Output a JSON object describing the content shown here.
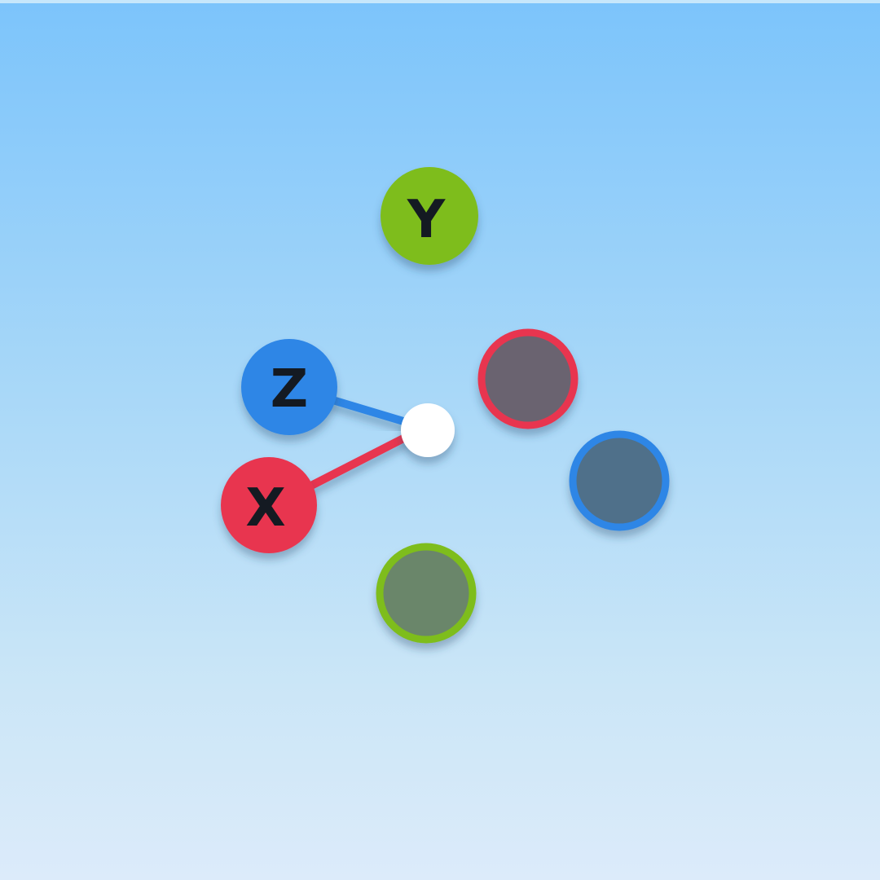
{
  "gizmo": {
    "axes": {
      "x": {
        "label": "X",
        "color": "#e8364f"
      },
      "y": {
        "label": "Y",
        "color": "#7ebd1a"
      },
      "z": {
        "label": "Z",
        "color": "#2d86e6"
      }
    },
    "negative_axes": {
      "neg_x": {
        "fill": "#6b6470",
        "ring": "#e8364f"
      },
      "neg_z": {
        "fill": "#4f6f8a",
        "ring": "#2d86e6"
      },
      "neg_y": {
        "fill": "#6a866a",
        "ring": "#7ebd1a"
      }
    },
    "center_handle": {
      "color": "#ffffff"
    }
  }
}
